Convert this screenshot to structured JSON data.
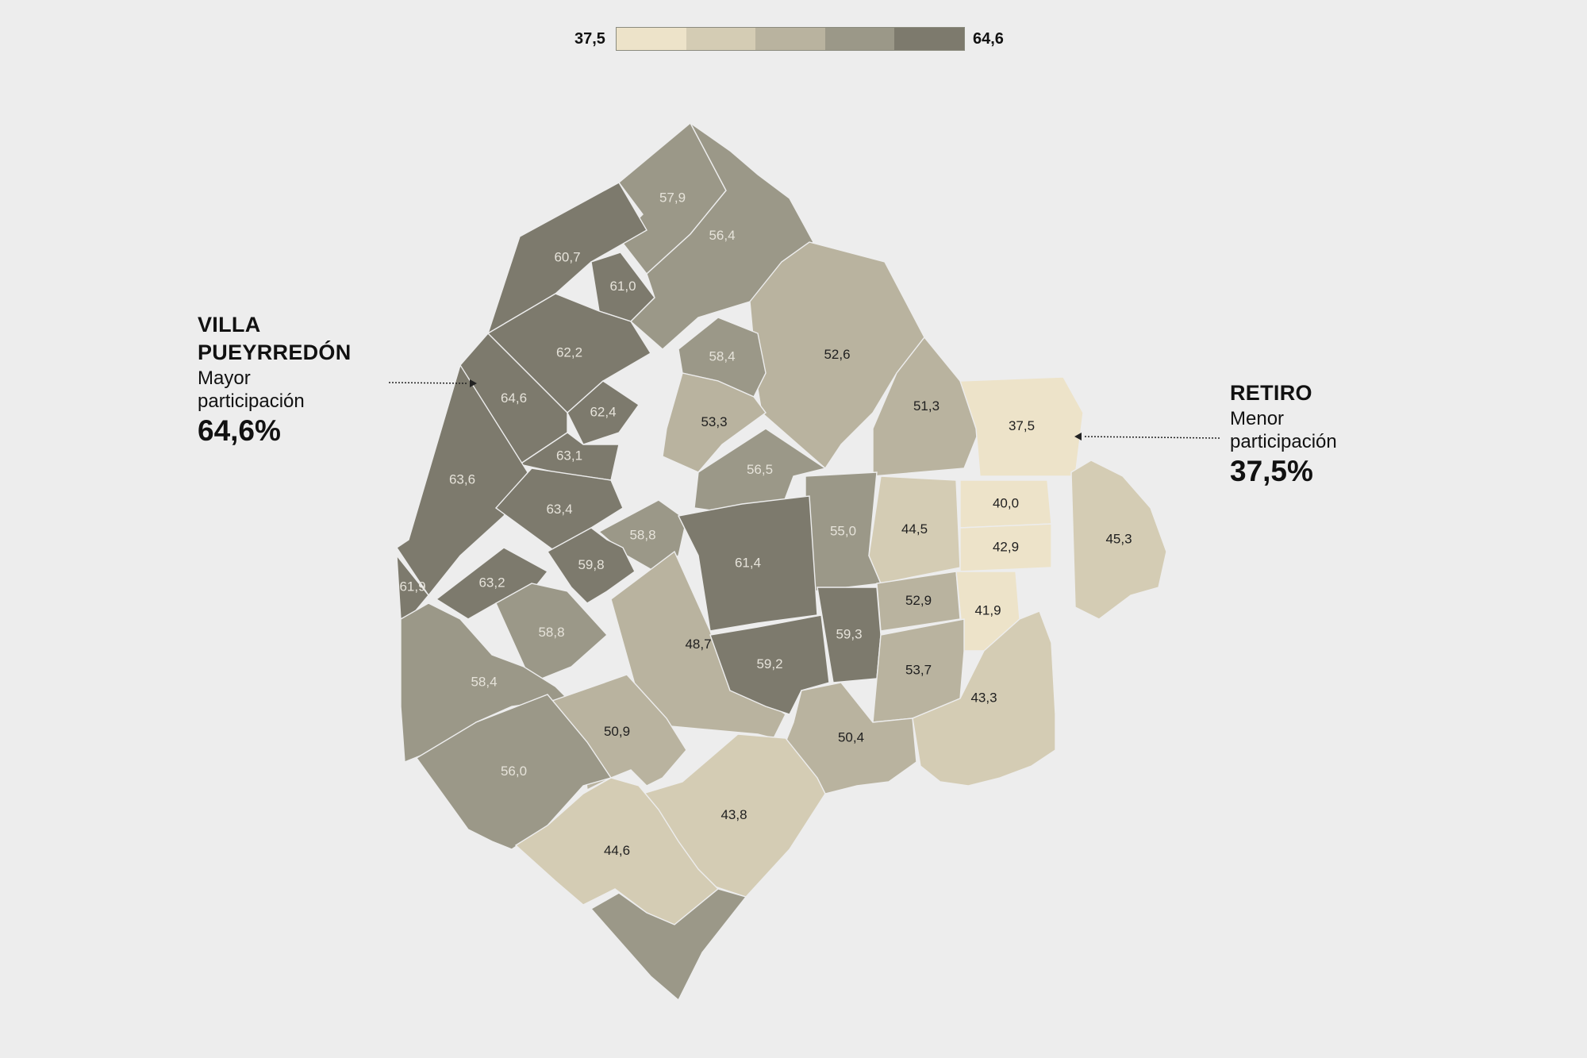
{
  "legend": {
    "min": "37,5",
    "max": "64,6",
    "colors": [
      "#ede3c9",
      "#d4ccb4",
      "#b9b39f",
      "#9b9888",
      "#7d7a6d"
    ]
  },
  "callouts": {
    "max": {
      "name_line1": "VILLA",
      "name_line2": "PUEYRREDÓN",
      "desc_line1": "Mayor",
      "desc_line2": "participación",
      "value": "64,6%"
    },
    "min": {
      "name_line1": "RETIRO",
      "desc_line1": "Menor",
      "desc_line2": "participación",
      "value": "37,5%"
    }
  },
  "colors": {
    "background": "#ededed",
    "stroke": "#ededed",
    "text_dark": "#1f1f1f",
    "text_light": "#e6e3da"
  },
  "barrios": [
    {
      "id": "b1",
      "value": "57,9"
    },
    {
      "id": "b2",
      "value": "60,7"
    },
    {
      "id": "b3",
      "value": "61,0"
    },
    {
      "id": "b4",
      "value": "56,4"
    },
    {
      "id": "b5",
      "value": "62,2"
    },
    {
      "id": "b6",
      "value": "52,6"
    },
    {
      "id": "b7",
      "value": "58,4"
    },
    {
      "id": "b8",
      "value": "64,6"
    },
    {
      "id": "b9",
      "value": "62,4"
    },
    {
      "id": "b10",
      "value": "53,3"
    },
    {
      "id": "b11",
      "value": "51,3"
    },
    {
      "id": "b12",
      "value": "37,5"
    },
    {
      "id": "b13",
      "value": "63,1"
    },
    {
      "id": "b14",
      "value": "56,5"
    },
    {
      "id": "b15",
      "value": "63,6"
    },
    {
      "id": "b16",
      "value": "63,4"
    },
    {
      "id": "b17",
      "value": "40,0"
    },
    {
      "id": "b18",
      "value": "58,8"
    },
    {
      "id": "b19",
      "value": "55,0"
    },
    {
      "id": "b20",
      "value": "44,5"
    },
    {
      "id": "b21",
      "value": "61,4"
    },
    {
      "id": "b22",
      "value": "42,9"
    },
    {
      "id": "b23",
      "value": "45,3"
    },
    {
      "id": "b24",
      "value": "59,8"
    },
    {
      "id": "b25",
      "value": "61,9"
    },
    {
      "id": "b26",
      "value": "63,2"
    },
    {
      "id": "b27",
      "value": "52,9"
    },
    {
      "id": "b28",
      "value": "41,9"
    },
    {
      "id": "b29",
      "value": "59,3"
    },
    {
      "id": "b30",
      "value": "58,8"
    },
    {
      "id": "b31",
      "value": "48,7"
    },
    {
      "id": "b32",
      "value": "59,2"
    },
    {
      "id": "b33",
      "value": "53,7"
    },
    {
      "id": "b34",
      "value": "58,4"
    },
    {
      "id": "b35",
      "value": "50,9"
    },
    {
      "id": "b36",
      "value": "50,4"
    },
    {
      "id": "b37",
      "value": "43,3"
    },
    {
      "id": "b38",
      "value": "56,0"
    },
    {
      "id": "b39",
      "value": "43,8"
    },
    {
      "id": "b40",
      "value": "44,6"
    }
  ]
}
